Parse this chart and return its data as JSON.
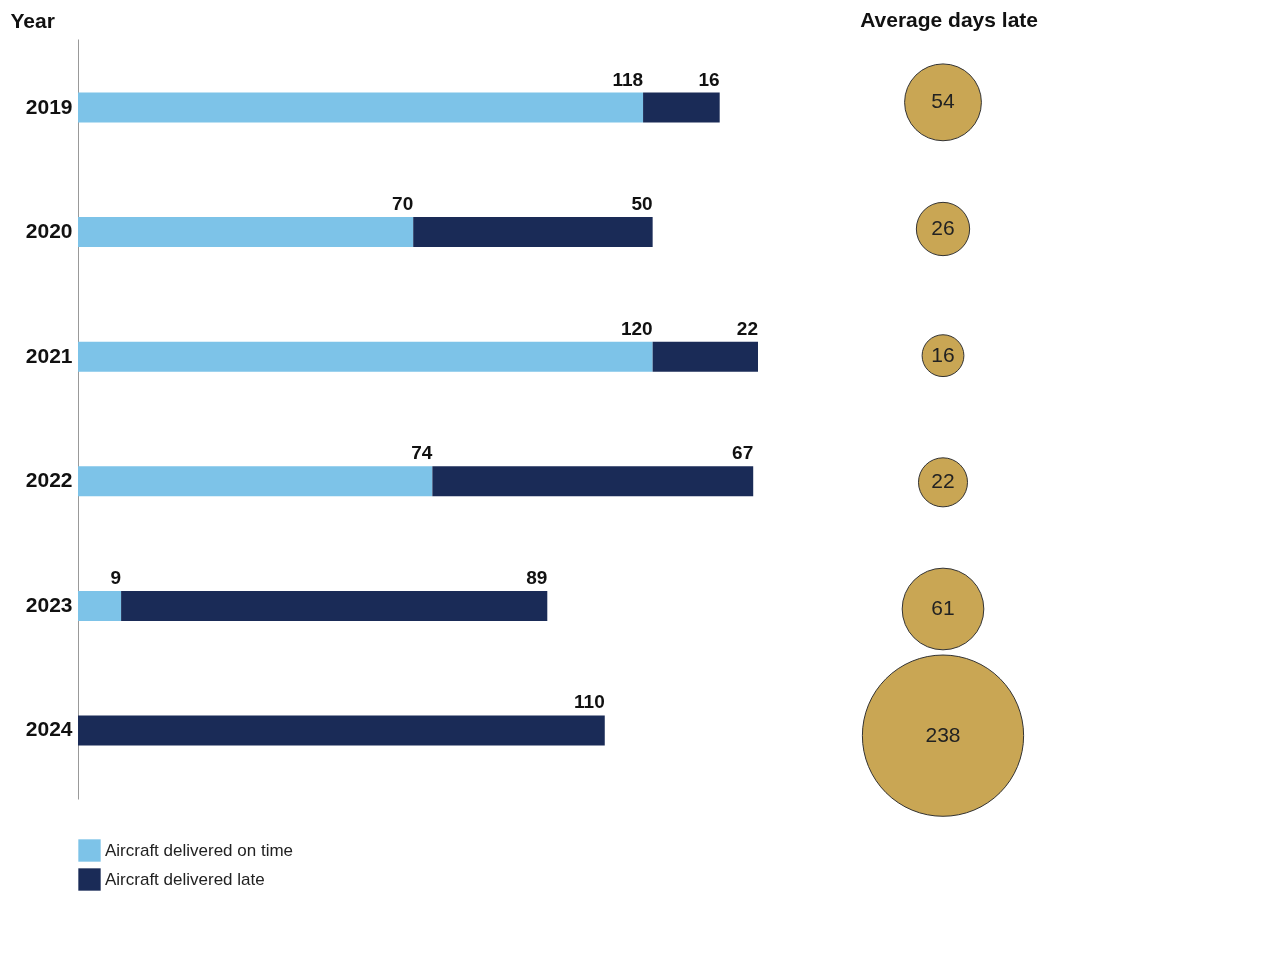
{
  "chart_data": [
    {
      "type": "bar",
      "orientation": "horizontal",
      "stacked": true,
      "ylabel": "Year",
      "categories": [
        "2019",
        "2020",
        "2021",
        "2022",
        "2023",
        "2024"
      ],
      "series": [
        {
          "name": "Aircraft delivered on time",
          "color": "#7dc3e8",
          "values": [
            118,
            70,
            120,
            74,
            9,
            null
          ]
        },
        {
          "name": "Aircraft delivered late",
          "color": "#1a2b57",
          "values": [
            16,
            50,
            22,
            67,
            89,
            110
          ]
        }
      ],
      "data_labels": true,
      "legend": "bottom left",
      "tick_labels": "y"
    },
    {
      "type": "other",
      "title": "Average days late",
      "values": [
        54,
        26,
        16,
        22,
        61,
        238
      ],
      "color": "#c9a654",
      "data_labels": true
    }
  ]
}
